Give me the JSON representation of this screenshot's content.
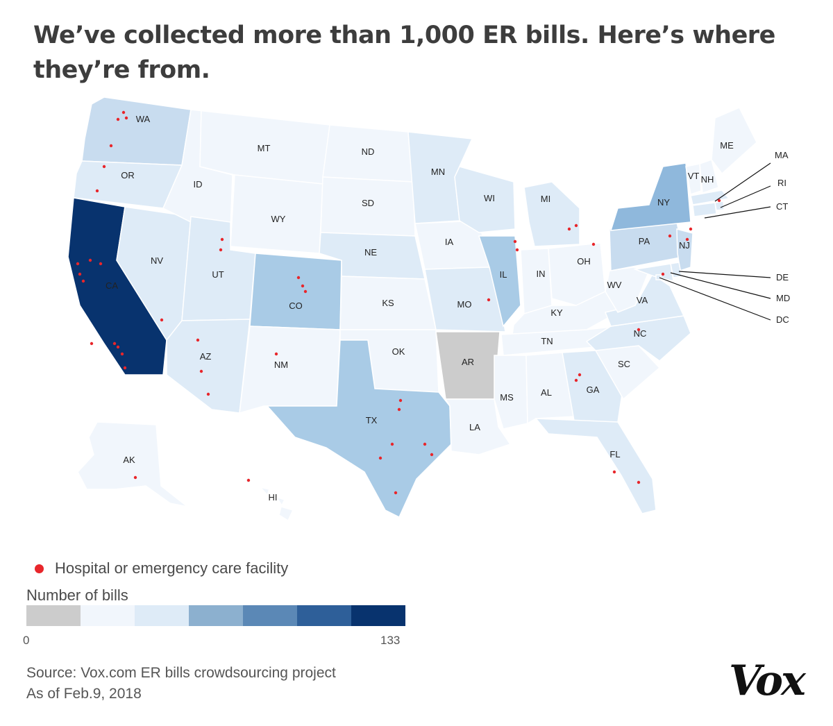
{
  "title": "We’ve collected more than 1,000 ER bills. Here’s where they’re from.",
  "legend": {
    "facility_label": "Hospital or emergency care facility",
    "scale_title": "Number of bills",
    "min_label": "0",
    "max_label": "133",
    "colors": [
      "#cccccc",
      "#f1f6fc",
      "#deebf7",
      "#8cb0cf",
      "#5b88b6",
      "#2e5f99",
      "#08336e"
    ]
  },
  "source_line1": "Source: Vox.com ER bills crowdsourcing project",
  "source_line2": "As of Feb.9, 2018",
  "logo_text": "Vox",
  "colors": {
    "dot": "#e8262b",
    "no_data": "#cccccc",
    "tier1": "#f1f6fc",
    "tier2": "#deebf7",
    "tier3": "#c8dcef",
    "tier4": "#a9cbe6",
    "tier5": "#8fb8dc",
    "max": "#08336e"
  },
  "chart_data": {
    "type": "choropleth",
    "title": "We’ve collected more than 1,000 ER bills. Here’s where they’re from.",
    "value_range": [
      0,
      133
    ],
    "states": [
      {
        "code": "WA",
        "tier": "tier3"
      },
      {
        "code": "OR",
        "tier": "tier2"
      },
      {
        "code": "CA",
        "tier": "max"
      },
      {
        "code": "NV",
        "tier": "tier2"
      },
      {
        "code": "ID",
        "tier": "tier1"
      },
      {
        "code": "MT",
        "tier": "tier1"
      },
      {
        "code": "WY",
        "tier": "tier1"
      },
      {
        "code": "UT",
        "tier": "tier2"
      },
      {
        "code": "AZ",
        "tier": "tier2"
      },
      {
        "code": "CO",
        "tier": "tier4"
      },
      {
        "code": "NM",
        "tier": "tier1"
      },
      {
        "code": "ND",
        "tier": "tier1"
      },
      {
        "code": "SD",
        "tier": "tier1"
      },
      {
        "code": "NE",
        "tier": "tier2"
      },
      {
        "code": "KS",
        "tier": "tier1"
      },
      {
        "code": "OK",
        "tier": "tier1"
      },
      {
        "code": "TX",
        "tier": "tier4"
      },
      {
        "code": "MN",
        "tier": "tier2"
      },
      {
        "code": "IA",
        "tier": "tier1"
      },
      {
        "code": "MO",
        "tier": "tier2"
      },
      {
        "code": "AR",
        "tier": "no_data"
      },
      {
        "code": "LA",
        "tier": "tier1"
      },
      {
        "code": "WI",
        "tier": "tier2"
      },
      {
        "code": "IL",
        "tier": "tier4"
      },
      {
        "code": "MI",
        "tier": "tier2"
      },
      {
        "code": "IN",
        "tier": "tier1"
      },
      {
        "code": "OH",
        "tier": "tier1"
      },
      {
        "code": "KY",
        "tier": "tier1"
      },
      {
        "code": "TN",
        "tier": "tier1"
      },
      {
        "code": "MS",
        "tier": "tier1"
      },
      {
        "code": "AL",
        "tier": "tier1"
      },
      {
        "code": "GA",
        "tier": "tier2"
      },
      {
        "code": "FL",
        "tier": "tier2"
      },
      {
        "code": "SC",
        "tier": "tier1"
      },
      {
        "code": "NC",
        "tier": "tier2"
      },
      {
        "code": "VA",
        "tier": "tier2"
      },
      {
        "code": "WV",
        "tier": "tier1"
      },
      {
        "code": "PA",
        "tier": "tier3"
      },
      {
        "code": "NY",
        "tier": "tier5"
      },
      {
        "code": "VT",
        "tier": "tier1"
      },
      {
        "code": "NH",
        "tier": "tier1"
      },
      {
        "code": "ME",
        "tier": "tier1"
      },
      {
        "code": "MA",
        "tier": "tier2"
      },
      {
        "code": "RI",
        "tier": "tier2"
      },
      {
        "code": "CT",
        "tier": "tier2"
      },
      {
        "code": "NJ",
        "tier": "tier3"
      },
      {
        "code": "DE",
        "tier": "tier2"
      },
      {
        "code": "MD",
        "tier": "tier2"
      },
      {
        "code": "DC",
        "tier": "tier2"
      },
      {
        "code": "AK",
        "tier": "tier1"
      },
      {
        "code": "HI",
        "tier": "tier1"
      }
    ]
  }
}
